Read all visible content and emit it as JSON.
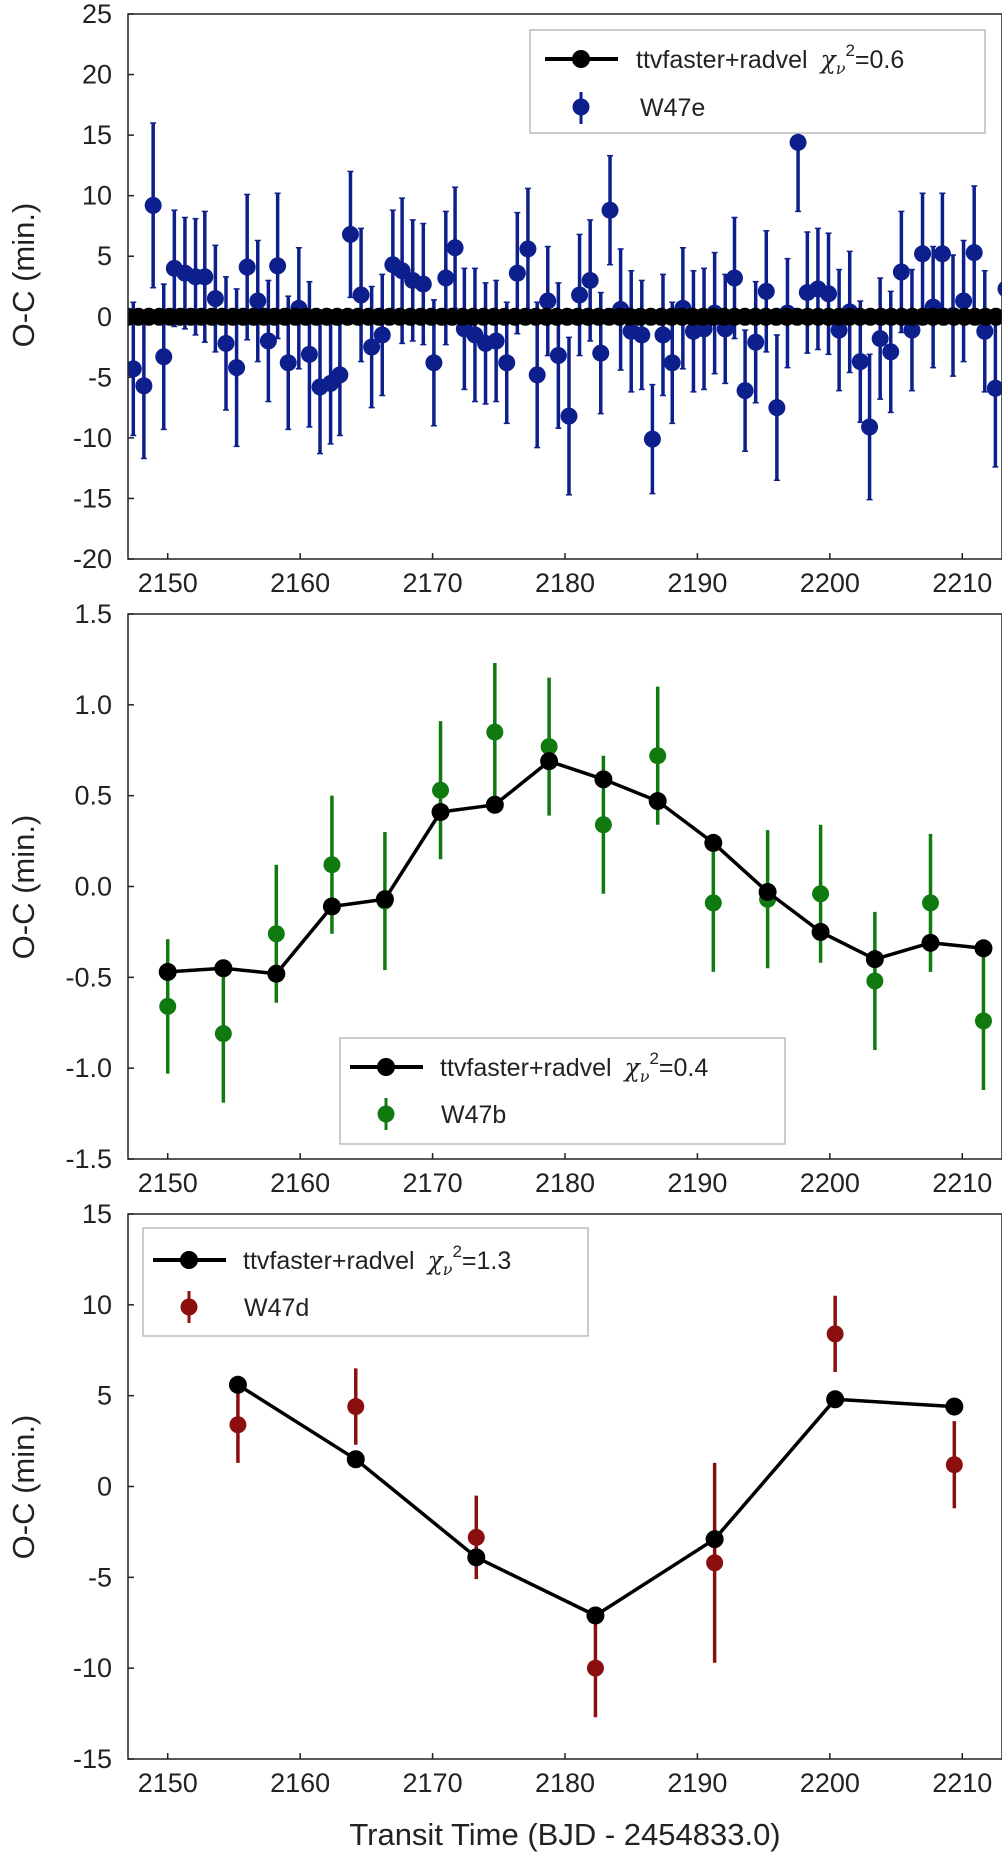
{
  "chart_data": [
    {
      "type": "scatter",
      "panel": "top",
      "xlabel": "",
      "ylabel": "O-C (min.)",
      "xlim": [
        2147,
        2213
      ],
      "ylim": [
        -20,
        25
      ],
      "xticks": [
        "2150",
        "2160",
        "2170",
        "2180",
        "2190",
        "2200",
        "2210"
      ],
      "yticks": [
        "25",
        "20",
        "15",
        "10",
        "5",
        "0",
        "-5",
        "-10",
        "-15",
        "-20"
      ],
      "legend": {
        "placement": "top-right",
        "model_label": "ttvfaster+radvel",
        "chi_label": "χ",
        "chi_sub": "ν",
        "chi_sup": "2",
        "chi_value": "=0.6",
        "data_label": "W47e"
      },
      "colors": {
        "data": "#0d1f8c",
        "model": "#000000"
      },
      "model": {
        "name": "ttvfaster+radvel",
        "x_start": 2147.0,
        "x_end": 2213.0,
        "period": 0.7896,
        "value": 0.0
      },
      "data_series": {
        "name": "W47e",
        "points": [
          [
            2147.4,
            -4.3,
            5.5
          ],
          [
            2148.2,
            -5.7,
            6.0
          ],
          [
            2148.9,
            9.2,
            6.8
          ],
          [
            2149.7,
            -3.3,
            6.0
          ],
          [
            2150.5,
            4.0,
            4.8
          ],
          [
            2151.3,
            3.6,
            4.6
          ],
          [
            2152.1,
            3.3,
            4.8
          ],
          [
            2152.8,
            3.3,
            5.4
          ],
          [
            2153.6,
            1.5,
            4.4
          ],
          [
            2154.4,
            -2.2,
            5.5
          ],
          [
            2155.2,
            -4.2,
            6.5
          ],
          [
            2156.0,
            4.1,
            6.0
          ],
          [
            2156.8,
            1.3,
            5.0
          ],
          [
            2157.6,
            -2.0,
            5.0
          ],
          [
            2158.3,
            4.2,
            6.0
          ],
          [
            2159.1,
            -3.8,
            5.5
          ],
          [
            2159.9,
            0.7,
            5.0
          ],
          [
            2160.7,
            -3.1,
            6.0
          ],
          [
            2161.5,
            -5.8,
            5.5
          ],
          [
            2162.3,
            -5.5,
            5.0
          ],
          [
            2163.0,
            -4.8,
            5.0
          ],
          [
            2163.8,
            6.8,
            5.2
          ],
          [
            2164.6,
            1.8,
            5.5
          ],
          [
            2165.4,
            -2.5,
            5.0
          ],
          [
            2166.2,
            -1.5,
            5.0
          ],
          [
            2167.0,
            4.3,
            4.5
          ],
          [
            2167.7,
            3.8,
            6.0
          ],
          [
            2168.5,
            3.0,
            5.0
          ],
          [
            2169.3,
            2.7,
            5.0
          ],
          [
            2170.1,
            -3.8,
            5.2
          ],
          [
            2171.0,
            3.2,
            5.5
          ],
          [
            2171.7,
            5.7,
            5.0
          ],
          [
            2172.4,
            -1.0,
            5.0
          ],
          [
            2173.2,
            -1.5,
            5.5
          ],
          [
            2174.0,
            -2.2,
            5.0
          ],
          [
            2174.8,
            -2.0,
            5.0
          ],
          [
            2175.6,
            -3.8,
            5.0
          ],
          [
            2176.4,
            3.6,
            5.0
          ],
          [
            2177.2,
            5.6,
            5.0
          ],
          [
            2177.9,
            -4.8,
            6.0
          ],
          [
            2178.7,
            1.3,
            4.5
          ],
          [
            2179.5,
            -3.2,
            6.0
          ],
          [
            2180.3,
            -8.2,
            6.5
          ],
          [
            2181.1,
            1.8,
            5.0
          ],
          [
            2181.9,
            3.0,
            5.0
          ],
          [
            2182.7,
            -3.0,
            5.0
          ],
          [
            2183.4,
            8.8,
            4.5
          ],
          [
            2184.2,
            0.6,
            5.0
          ],
          [
            2185.0,
            -1.2,
            5.0
          ],
          [
            2185.8,
            -1.5,
            4.5
          ],
          [
            2186.6,
            -10.1,
            4.5
          ],
          [
            2187.4,
            -1.5,
            5.0
          ],
          [
            2188.1,
            -3.8,
            5.0
          ],
          [
            2188.9,
            0.7,
            5.0
          ],
          [
            2189.7,
            -1.2,
            5.0
          ],
          [
            2190.5,
            -1.0,
            5.0
          ],
          [
            2191.3,
            0.3,
            5.0
          ],
          [
            2192.1,
            -1.0,
            4.5
          ],
          [
            2192.8,
            3.2,
            5.0
          ],
          [
            2193.6,
            -6.1,
            5.0
          ],
          [
            2194.4,
            -2.1,
            5.0
          ],
          [
            2195.2,
            2.1,
            5.0
          ],
          [
            2196.0,
            -7.5,
            6.0
          ],
          [
            2196.8,
            0.3,
            4.5
          ],
          [
            2197.6,
            14.4,
            5.7
          ],
          [
            2198.3,
            2.0,
            5.0
          ],
          [
            2199.1,
            2.3,
            5.0
          ],
          [
            2199.9,
            1.9,
            5.0
          ],
          [
            2200.7,
            -1.1,
            5.0
          ],
          [
            2201.5,
            0.4,
            5.0
          ],
          [
            2202.3,
            -3.7,
            5.0
          ],
          [
            2203.0,
            -9.1,
            6.0
          ],
          [
            2203.8,
            -1.8,
            5.0
          ],
          [
            2204.6,
            -2.9,
            5.0
          ],
          [
            2205.4,
            3.7,
            5.0
          ],
          [
            2206.2,
            -1.1,
            5.0
          ],
          [
            2207.0,
            5.2,
            5.0
          ],
          [
            2207.8,
            0.8,
            5.0
          ],
          [
            2208.5,
            5.2,
            5.0
          ],
          [
            2209.3,
            0.1,
            5.0
          ],
          [
            2210.1,
            1.3,
            5.0
          ],
          [
            2210.9,
            5.3,
            5.5
          ],
          [
            2211.7,
            -1.2,
            5.0
          ],
          [
            2212.5,
            -5.9,
            6.5
          ],
          [
            2213.3,
            2.3,
            4.5
          ]
        ]
      }
    },
    {
      "type": "line",
      "panel": "middle",
      "xlabel": "",
      "ylabel": "O-C (min.)",
      "xlim": [
        2147,
        2213
      ],
      "ylim": [
        -1.5,
        1.5
      ],
      "xticks": [
        "2150",
        "2160",
        "2170",
        "2180",
        "2190",
        "2200",
        "2210"
      ],
      "yticks": [
        "1.5",
        "1.0",
        "0.5",
        "0.0",
        "-0.5",
        "-1.0",
        "-1.5"
      ],
      "legend": {
        "placement": "bottom-center",
        "model_label": "ttvfaster+radvel",
        "chi_label": "χ",
        "chi_sub": "ν",
        "chi_sup": "2",
        "chi_value": "=0.4",
        "data_label": "W47b"
      },
      "colors": {
        "data": "#107a10",
        "model": "#000000"
      },
      "model": {
        "name": "ttvfaster+radvel",
        "x": [
          2150.0,
          2154.2,
          2158.2,
          2162.4,
          2166.4,
          2170.6,
          2174.7,
          2178.8,
          2182.9,
          2187.0,
          2191.2,
          2195.3,
          2199.3,
          2203.4,
          2207.6,
          2211.6
        ],
        "y": [
          -0.47,
          -0.45,
          -0.48,
          -0.11,
          -0.07,
          0.41,
          0.45,
          0.69,
          0.59,
          0.47,
          0.24,
          -0.03,
          -0.25,
          -0.4,
          -0.31,
          -0.34
        ]
      },
      "data_series": {
        "name": "W47b",
        "points": [
          [
            2150.0,
            -0.66,
            0.37
          ],
          [
            2154.2,
            -0.81,
            0.38
          ],
          [
            2158.2,
            -0.26,
            0.38
          ],
          [
            2162.4,
            0.12,
            0.38
          ],
          [
            2166.4,
            -0.08,
            0.38
          ],
          [
            2170.6,
            0.53,
            0.38
          ],
          [
            2174.7,
            0.85,
            0.38
          ],
          [
            2178.8,
            0.77,
            0.38
          ],
          [
            2182.9,
            0.34,
            0.38
          ],
          [
            2187.0,
            0.72,
            0.38
          ],
          [
            2191.2,
            -0.09,
            0.38
          ],
          [
            2195.3,
            -0.07,
            0.38
          ],
          [
            2199.3,
            -0.04,
            0.38
          ],
          [
            2203.4,
            -0.52,
            0.38
          ],
          [
            2207.6,
            -0.09,
            0.38
          ],
          [
            2211.6,
            -0.74,
            0.38
          ]
        ]
      }
    },
    {
      "type": "line",
      "panel": "bottom",
      "xlabel": "Transit Time (BJD - 2454833.0)",
      "ylabel": "O-C (min.)",
      "xlim": [
        2147,
        2213
      ],
      "ylim": [
        -15,
        15
      ],
      "xticks": [
        "2150",
        "2160",
        "2170",
        "2180",
        "2190",
        "2200",
        "2210"
      ],
      "yticks": [
        "15",
        "10",
        "5",
        "0",
        "-5",
        "-10",
        "-15"
      ],
      "legend": {
        "placement": "top-left",
        "model_label": "ttvfaster+radvel",
        "chi_label": "χ",
        "chi_sub": "ν",
        "chi_sup": "2",
        "chi_value": "=1.3",
        "data_label": "W47d"
      },
      "colors": {
        "data": "#8c0f0f",
        "model": "#000000"
      },
      "model": {
        "name": "ttvfaster+radvel",
        "x": [
          2155.3,
          2164.2,
          2173.3,
          2182.3,
          2191.3,
          2200.4,
          2209.4
        ],
        "y": [
          5.6,
          1.5,
          -3.9,
          -7.1,
          -2.9,
          4.8,
          4.4
        ]
      },
      "data_series": {
        "name": "W47d",
        "points": [
          [
            2155.3,
            3.4,
            2.1
          ],
          [
            2164.2,
            4.4,
            2.1
          ],
          [
            2173.3,
            -2.8,
            2.3
          ],
          [
            2182.3,
            -10.0,
            2.7
          ],
          [
            2191.3,
            -4.2,
            5.5
          ],
          [
            2200.4,
            8.4,
            2.1
          ],
          [
            2209.4,
            1.2,
            2.4
          ]
        ]
      }
    }
  ]
}
